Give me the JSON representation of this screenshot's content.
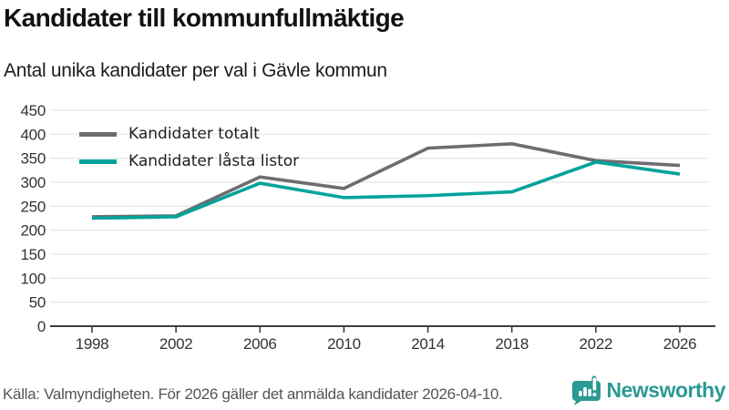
{
  "header": {
    "title": "Kandidater till kommunfullmäktige",
    "subtitle": "Antal unika kandidater per val i Gävle kommun"
  },
  "chart_data": {
    "type": "line",
    "x": [
      1998,
      2002,
      2006,
      2010,
      2014,
      2018,
      2022,
      2026
    ],
    "series": [
      {
        "name": "Kandidater totalt",
        "color": "#6d6d71",
        "values": [
          228,
          230,
          311,
          287,
          371,
          380,
          345,
          335
        ]
      },
      {
        "name": "Kandidater låsta listor",
        "color": "#00a39a",
        "values": [
          225,
          228,
          298,
          268,
          272,
          280,
          342,
          317
        ]
      }
    ],
    "ylim": [
      0,
      450
    ],
    "ytick_step": 50,
    "grid": true,
    "legend_position": "top-left",
    "xlabel": "",
    "ylabel": ""
  },
  "footer": {
    "source": "Källa: Valmyndigheten. För 2026 gäller det anmälda kandidater 2026-04-10.",
    "brand": "Newsworthy"
  },
  "colors": {
    "grid": "#e8e8e8",
    "axis": "#3e3e3e",
    "tick_label": "#333333",
    "brand_teal": "#2b9a94"
  }
}
